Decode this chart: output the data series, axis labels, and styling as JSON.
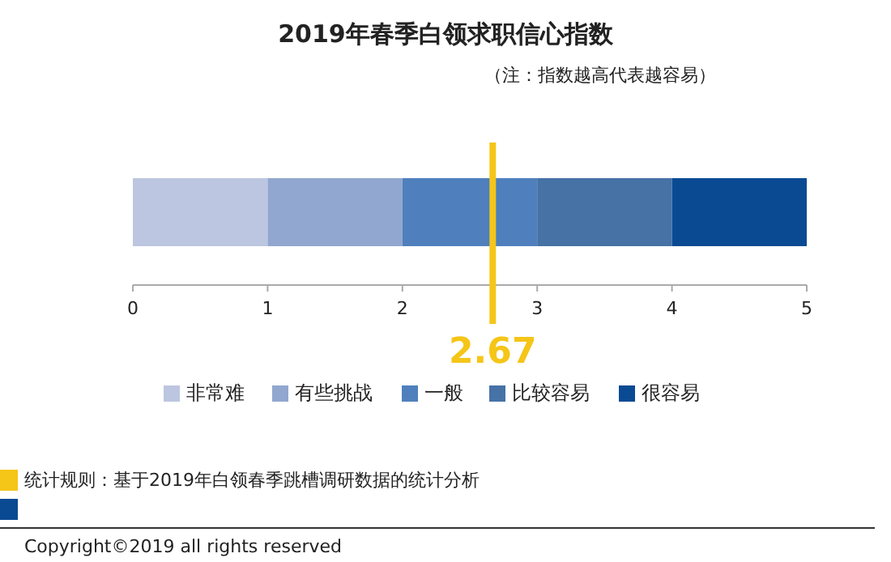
{
  "chart_data": {
    "type": "bar",
    "orientation": "horizontal",
    "stacked": true,
    "title": "2019年春季白领求职信心指数",
    "subtitle": "（注：指数越高代表越容易）",
    "categories": [
      null
    ],
    "series": [
      {
        "name": "非常难",
        "color": "#bcc6e0",
        "values": [
          1
        ]
      },
      {
        "name": "有些挑战",
        "color": "#91a7cf",
        "values": [
          1
        ]
      },
      {
        "name": "一般",
        "color": "#4f80bd",
        "values": [
          1
        ]
      },
      {
        "name": "比较容易",
        "color": "#4672a6",
        "values": [
          1
        ]
      },
      {
        "name": "很容易",
        "color": "#0a4a93",
        "values": [
          1
        ]
      }
    ],
    "xlim": [
      0,
      5
    ],
    "xticks": [
      0,
      1,
      2,
      3,
      4,
      5
    ],
    "grid": false,
    "legend": "bottom",
    "ref_lines": [
      {
        "axis": "x",
        "value": 2.67,
        "label": "2.67",
        "color": "#f5c518"
      }
    ],
    "annotations": [
      "统计规则：基于2019年白领春季跳槽调研数据的统计分析",
      "Copyright©2019 all rights reserved"
    ]
  }
}
